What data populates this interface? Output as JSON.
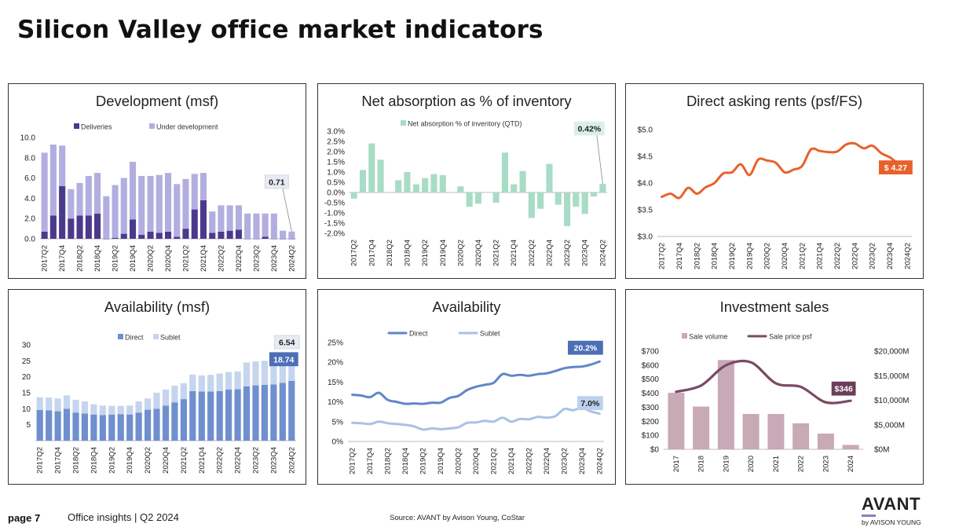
{
  "page": {
    "title": "Silicon Valley office market indicators",
    "page_label": "page 7",
    "report_label": "Office insights  |  Q2 2024",
    "source": "Source: AVANT by Avison Young, CoStar",
    "logo_main": "AVANT",
    "logo_sub": "by AVISON YOUNG"
  },
  "chart_data": [
    {
      "id": "development",
      "type": "bar",
      "stacked": true,
      "title": "Development (msf)",
      "categories": [
        "2017Q2",
        "2017Q3",
        "2017Q4",
        "2018Q1",
        "2018Q2",
        "2018Q3",
        "2018Q4",
        "2019Q1",
        "2019Q2",
        "2019Q3",
        "2019Q4",
        "2020Q1",
        "2020Q2",
        "2020Q3",
        "2020Q4",
        "2021Q1",
        "2021Q2",
        "2021Q3",
        "2021Q4",
        "2022Q1",
        "2022Q2",
        "2022Q3",
        "2022Q4",
        "2023Q1",
        "2023Q2",
        "2023Q3",
        "2023Q4",
        "2024Q1",
        "2024Q2"
      ],
      "tick_labels": [
        "2017Q2",
        "2017Q4",
        "2018Q2",
        "2018Q4",
        "2019Q2",
        "2019Q4",
        "2020Q2",
        "2020Q4",
        "2021Q2",
        "2021Q4",
        "2022Q2",
        "2022Q4",
        "2023Q2",
        "2023Q4",
        "2024Q2"
      ],
      "series": [
        {
          "name": "Deliveries",
          "color": "#4b3a8c",
          "values": [
            0.7,
            2.3,
            5.2,
            2.0,
            2.3,
            2.3,
            2.5,
            0.0,
            0.1,
            0.5,
            1.9,
            0.4,
            0.7,
            0.6,
            0.7,
            0.2,
            1.0,
            2.9,
            3.8,
            0.6,
            0.7,
            0.8,
            0.9,
            0.0,
            0.0,
            0.2,
            0.0,
            0.0,
            0.0
          ]
        },
        {
          "name": "Under development",
          "color": "#b3aee0",
          "values": [
            7.8,
            7.0,
            4.0,
            2.9,
            3.2,
            3.9,
            4.0,
            4.2,
            5.2,
            5.5,
            5.7,
            5.8,
            5.5,
            5.7,
            5.8,
            5.2,
            4.9,
            3.5,
            2.7,
            2.1,
            2.6,
            2.5,
            2.4,
            2.5,
            2.5,
            2.3,
            2.5,
            0.8,
            0.71
          ]
        }
      ],
      "ylim": [
        0,
        10
      ],
      "yticks": [
        "0.0",
        "2.0",
        "4.0",
        "6.0",
        "8.0",
        "10.0"
      ],
      "callouts": [
        {
          "text": "0.71",
          "series": 1
        }
      ]
    },
    {
      "id": "absorption",
      "type": "bar",
      "title": "Net absorption as % of inventory",
      "categories": [
        "2017Q2",
        "2017Q3",
        "2017Q4",
        "2018Q1",
        "2018Q2",
        "2018Q3",
        "2018Q4",
        "2019Q1",
        "2019Q2",
        "2019Q3",
        "2019Q4",
        "2020Q1",
        "2020Q2",
        "2020Q3",
        "2020Q4",
        "2021Q1",
        "2021Q2",
        "2021Q3",
        "2021Q4",
        "2022Q1",
        "2022Q2",
        "2022Q3",
        "2022Q4",
        "2023Q1",
        "2023Q2",
        "2023Q3",
        "2023Q4",
        "2024Q1",
        "2024Q2"
      ],
      "tick_labels": [
        "2017Q2",
        "2017Q4",
        "2018Q2",
        "2018Q4",
        "2019Q2",
        "2019Q4",
        "2020Q2",
        "2020Q4",
        "2021Q2",
        "2021Q4",
        "2022Q2",
        "2022Q4",
        "2023Q2",
        "2023Q4",
        "2024Q2"
      ],
      "series": [
        {
          "name": "Net absorption % of inventory (QTD)",
          "color": "#a8dcc6",
          "values": [
            -0.3,
            1.1,
            2.4,
            1.6,
            0.0,
            0.6,
            1.0,
            0.4,
            0.7,
            0.9,
            0.85,
            0.0,
            0.3,
            -0.7,
            -0.55,
            0.0,
            -0.5,
            1.95,
            0.4,
            1.05,
            -1.25,
            -0.8,
            1.4,
            -0.6,
            -1.65,
            -0.7,
            -1.05,
            -0.2,
            0.42
          ]
        }
      ],
      "ylim": [
        -2.0,
        3.0
      ],
      "yticks": [
        "3.0%",
        "2.5%",
        "2.0%",
        "1.5%",
        "1.0%",
        "0.5%",
        "0.0%",
        "-0.5%",
        "-1.0%",
        "-1.5%",
        "-2.0%"
      ],
      "callouts": [
        {
          "text": "0.42%",
          "series": 0
        }
      ]
    },
    {
      "id": "rents",
      "type": "line",
      "title": "Direct asking rents (psf/FS)",
      "categories": [
        "2017Q2",
        "2017Q3",
        "2017Q4",
        "2018Q1",
        "2018Q2",
        "2018Q3",
        "2018Q4",
        "2019Q1",
        "2019Q2",
        "2019Q3",
        "2019Q4",
        "2020Q1",
        "2020Q2",
        "2020Q3",
        "2020Q4",
        "2021Q1",
        "2021Q2",
        "2021Q3",
        "2021Q4",
        "2022Q1",
        "2022Q2",
        "2022Q3",
        "2022Q4",
        "2023Q1",
        "2023Q2",
        "2023Q3",
        "2023Q4",
        "2024Q1",
        "2024Q2"
      ],
      "tick_labels": [
        "2017Q2",
        "2017Q4",
        "2018Q2",
        "2018Q4",
        "2019Q2",
        "2019Q4",
        "2020Q2",
        "2020Q4",
        "2021Q2",
        "2021Q4",
        "2022Q2",
        "2022Q4",
        "2023Q2",
        "2023Q4",
        "2024Q2"
      ],
      "series": [
        {
          "name": "Direct asking rent",
          "color": "#e8612a",
          "values": [
            3.74,
            3.8,
            3.72,
            3.91,
            3.8,
            3.92,
            4.0,
            4.18,
            4.2,
            4.35,
            4.15,
            4.44,
            4.42,
            4.38,
            4.2,
            4.25,
            4.32,
            4.63,
            4.6,
            4.58,
            4.59,
            4.72,
            4.74,
            4.65,
            4.7,
            4.56,
            4.48,
            4.35,
            4.27
          ]
        }
      ],
      "ylim": [
        3.0,
        5.0
      ],
      "yticks": [
        "$3.0",
        "$3.5",
        "$4.0",
        "$4.5",
        "$5.0"
      ],
      "callouts": [
        {
          "text": "$ 4.27",
          "series": 0
        }
      ]
    },
    {
      "id": "availability_msf",
      "type": "bar",
      "stacked": true,
      "title": "Availability (msf)",
      "categories": [
        "2017Q2",
        "2017Q3",
        "2017Q4",
        "2018Q1",
        "2018Q2",
        "2018Q3",
        "2018Q4",
        "2019Q1",
        "2019Q2",
        "2019Q3",
        "2019Q4",
        "2020Q1",
        "2020Q2",
        "2020Q3",
        "2020Q4",
        "2021Q1",
        "2021Q2",
        "2021Q3",
        "2021Q4",
        "2022Q1",
        "2022Q2",
        "2022Q3",
        "2022Q4",
        "2023Q1",
        "2023Q2",
        "2023Q3",
        "2023Q4",
        "2024Q1",
        "2024Q2"
      ],
      "tick_labels": [
        "2017Q2",
        "2017Q4",
        "2018Q2",
        "2018Q4",
        "2019Q2",
        "2019Q4",
        "2020Q2",
        "2020Q4",
        "2021Q2",
        "2021Q4",
        "2022Q2",
        "2022Q4",
        "2023Q2",
        "2023Q4",
        "2024Q2"
      ],
      "series": [
        {
          "name": "Direct",
          "color": "#6f8fcf",
          "values": [
            9.6,
            9.5,
            9.2,
            10.0,
            8.8,
            8.5,
            8.2,
            8.0,
            8.2,
            8.3,
            8.2,
            8.8,
            9.7,
            10.0,
            11.0,
            12.0,
            13.0,
            15.5,
            15.4,
            15.4,
            15.5,
            16.0,
            16.1,
            17.0,
            17.3,
            17.5,
            17.6,
            18.1,
            18.74
          ]
        },
        {
          "name": "Sublet",
          "color": "#c5d5ee",
          "values": [
            4.0,
            4.0,
            4.0,
            4.2,
            4.0,
            3.8,
            3.2,
            3.0,
            2.7,
            2.6,
            2.8,
            3.5,
            3.5,
            5.0,
            5.0,
            5.2,
            5.0,
            5.2,
            5.0,
            5.2,
            5.5,
            5.5,
            5.6,
            7.5,
            7.5,
            7.5,
            7.5,
            7.0,
            6.54
          ]
        }
      ],
      "ylim": [
        0,
        30
      ],
      "yticks": [
        "5",
        "10",
        "15",
        "20",
        "25",
        "30"
      ],
      "callouts": [
        {
          "text": "6.54",
          "series": 1
        },
        {
          "text": "18.74",
          "series": 0
        }
      ]
    },
    {
      "id": "availability_rate",
      "type": "line",
      "title": "Availability",
      "categories": [
        "2017Q2",
        "2017Q3",
        "2017Q4",
        "2018Q1",
        "2018Q2",
        "2018Q3",
        "2018Q4",
        "2019Q1",
        "2019Q2",
        "2019Q3",
        "2019Q4",
        "2020Q1",
        "2020Q2",
        "2020Q3",
        "2020Q4",
        "2021Q1",
        "2021Q2",
        "2021Q3",
        "2021Q4",
        "2022Q1",
        "2022Q2",
        "2022Q3",
        "2022Q4",
        "2023Q1",
        "2023Q2",
        "2023Q3",
        "2023Q4",
        "2024Q1",
        "2024Q2"
      ],
      "tick_labels": [
        "2017Q2",
        "2017Q4",
        "2018Q2",
        "2018Q4",
        "2019Q2",
        "2019Q4",
        "2020Q2",
        "2020Q4",
        "2021Q2",
        "2021Q4",
        "2022Q2",
        "2022Q4",
        "2023Q2",
        "2023Q4",
        "2024Q2"
      ],
      "series": [
        {
          "name": "Direct",
          "color": "#5f86c8",
          "values": [
            11.8,
            11.6,
            11.2,
            12.3,
            10.5,
            10.0,
            9.5,
            9.6,
            9.5,
            9.8,
            9.8,
            11.0,
            11.5,
            13.0,
            13.8,
            14.3,
            14.8,
            17.0,
            16.6,
            16.8,
            16.6,
            17.0,
            17.2,
            17.8,
            18.5,
            18.8,
            18.9,
            19.4,
            20.2
          ]
        },
        {
          "name": "Sublet",
          "color": "#a9c1e6",
          "values": [
            4.7,
            4.6,
            4.4,
            5.0,
            4.6,
            4.4,
            4.2,
            3.8,
            3.0,
            3.3,
            3.1,
            3.3,
            3.6,
            4.7,
            4.8,
            5.2,
            5.0,
            6.0,
            5.0,
            5.7,
            5.6,
            6.2,
            6.0,
            6.4,
            8.2,
            7.9,
            8.5,
            7.6,
            7.0
          ]
        }
      ],
      "ylim": [
        0,
        25
      ],
      "yticks": [
        "0%",
        "5%",
        "10%",
        "15%",
        "20%",
        "25%"
      ],
      "callouts": [
        {
          "text": "20.2%",
          "series": 0
        },
        {
          "text": "7.0%",
          "series": 1
        }
      ]
    },
    {
      "id": "investment",
      "type": "bar",
      "title": "Investment sales",
      "categories": [
        "2017",
        "2018",
        "2019",
        "2020",
        "2021",
        "2022",
        "2023",
        "2024"
      ],
      "tick_labels": [
        "2017",
        "2018",
        "2019",
        "2020",
        "2021",
        "2022",
        "2023",
        "2024"
      ],
      "series": [
        {
          "name": "Sale volume",
          "color": "#c8a9b6",
          "axis": "right",
          "values": [
            11500,
            8700,
            18200,
            7200,
            7200,
            5300,
            3200,
            900
          ]
        },
        {
          "name": "Sale price psf",
          "color": "#7a4a65",
          "axis": "left",
          "type": "line",
          "values": [
            410,
            455,
            600,
            620,
            470,
            445,
            335,
            346
          ]
        }
      ],
      "ylim": [
        0,
        700
      ],
      "y2lim": [
        0,
        20000
      ],
      "yticks": [
        "$0",
        "$100",
        "$200",
        "$300",
        "$400",
        "$500",
        "$600",
        "$700"
      ],
      "y2ticks": [
        "$0M",
        "$5,000M",
        "$10,000M",
        "$15,000M",
        "$20,000M"
      ],
      "callouts": [
        {
          "text": "$346",
          "series": 1
        }
      ]
    }
  ]
}
